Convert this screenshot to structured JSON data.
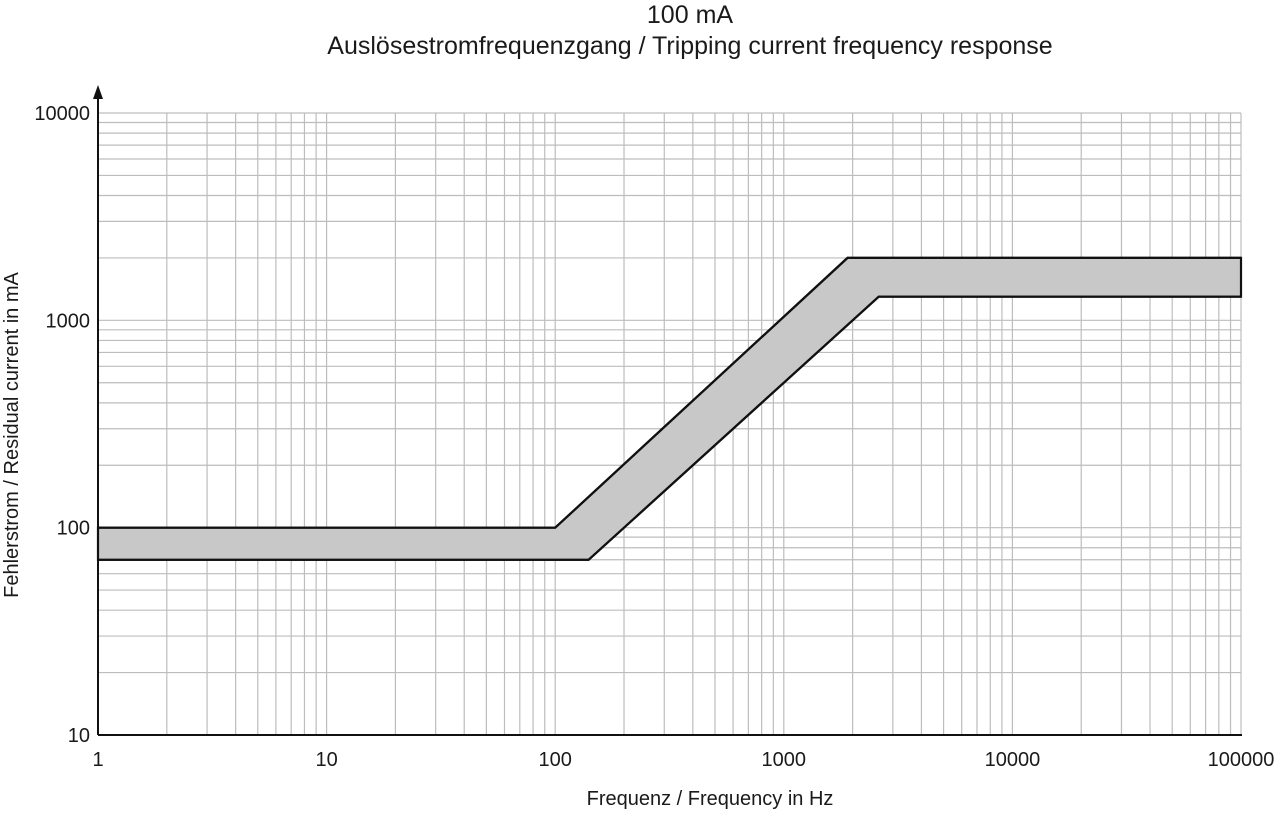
{
  "chart_data": {
    "type": "area",
    "title": "100 mA",
    "subtitle": "Auslösestromfrequenzgang / Tripping current frequency response",
    "xlabel": "Frequenz /  Frequency in Hz",
    "ylabel": "Fehlerstrom /  Residual current in mA",
    "x_scale": "log",
    "y_scale": "log",
    "xlim": [
      1,
      100000
    ],
    "ylim": [
      10,
      10000
    ],
    "grid": true,
    "x_ticks": [
      "1",
      "10",
      "100",
      "1000",
      "10000",
      "100000"
    ],
    "y_ticks": [
      "10",
      "100",
      "1000",
      "10000"
    ],
    "series": [
      {
        "role": "upper",
        "x": [
          1,
          100,
          1900,
          100000
        ],
        "values": [
          100,
          100,
          2000,
          2000
        ]
      },
      {
        "role": "lower",
        "x": [
          1,
          140,
          2600,
          100000
        ],
        "values": [
          70,
          70,
          1300,
          1300
        ]
      }
    ],
    "band_fill": "#c8c8c8",
    "line_color": "#111111",
    "grid_color": "#bdbdbd"
  }
}
